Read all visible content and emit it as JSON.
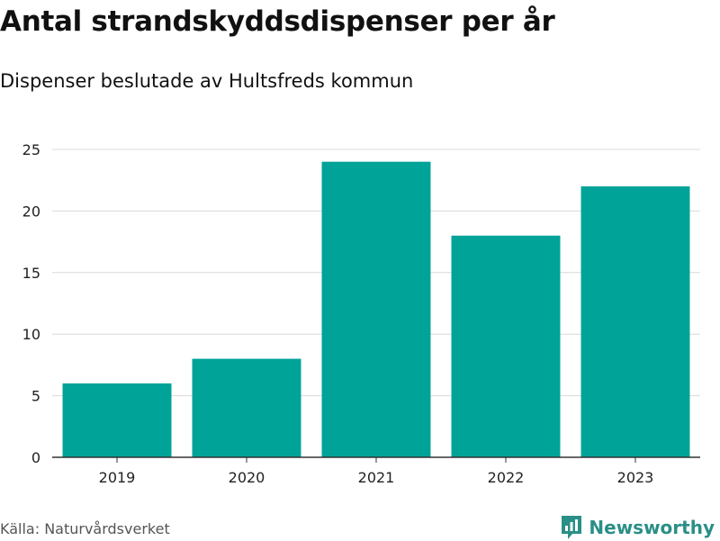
{
  "header": {
    "title": "Antal strandskyddsdispenser per år",
    "subtitle": "Dispenser beslutade av Hultsfreds kommun"
  },
  "footer": {
    "source": "Källa: Naturvårdsverket",
    "brand": "Newsworthy",
    "brand_icon": "newsworthy-logo-icon",
    "brand_color": "#2a8f87"
  },
  "chart_data": {
    "type": "bar",
    "title": "Antal strandskyddsdispenser per år",
    "subtitle": "Dispenser beslutade av Hultsfreds kommun",
    "xlabel": "",
    "ylabel": "",
    "categories": [
      "2019",
      "2020",
      "2021",
      "2022",
      "2023"
    ],
    "values": [
      6,
      8,
      24,
      18,
      22
    ],
    "ylim": [
      0,
      25
    ],
    "yticks": [
      0,
      5,
      10,
      15,
      20,
      25
    ],
    "grid": true,
    "legend": "none",
    "bar_color": "#00a398"
  }
}
